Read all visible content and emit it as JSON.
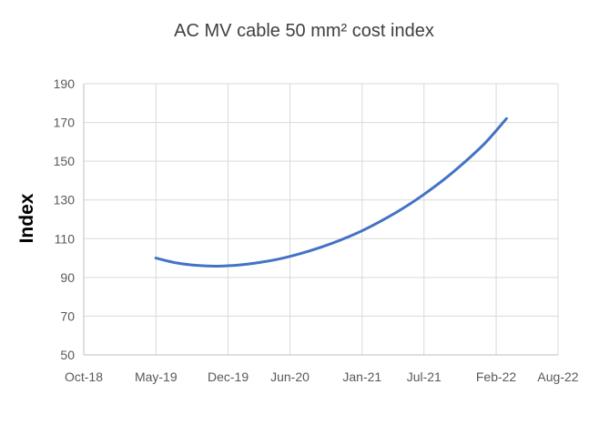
{
  "chart_data": {
    "type": "line",
    "title": "AC MV cable 50 mm² cost index",
    "xlabel": "",
    "ylabel": "Index",
    "x_ticks": [
      "Oct-18",
      "May-19",
      "Dec-19",
      "Jun-20",
      "Jan-21",
      "Jul-21",
      "Feb-22",
      "Aug-22"
    ],
    "y_ticks": [
      50,
      70,
      90,
      110,
      130,
      150,
      170,
      190
    ],
    "ylim": [
      50,
      190
    ],
    "grid": true,
    "legend": "none",
    "series": [
      {
        "color": "#4472c4",
        "x": [
          "May-19",
          "Jul-19",
          "Sep-19",
          "Nov-19",
          "Jan-20",
          "Mar-20",
          "May-20",
          "Jul-20",
          "Sep-20",
          "Nov-20",
          "Jan-21",
          "Mar-21",
          "May-21",
          "Jul-21",
          "Sep-21",
          "Nov-21",
          "Jan-22",
          "Mar-22"
        ],
        "y": [
          100,
          97.5,
          96.2,
          95.8,
          96.4,
          97.7,
          99.6,
          102.3,
          105.6,
          109.5,
          114.1,
          119.6,
          125.8,
          132.9,
          140.8,
          149.8,
          159.8,
          172
        ]
      }
    ]
  }
}
